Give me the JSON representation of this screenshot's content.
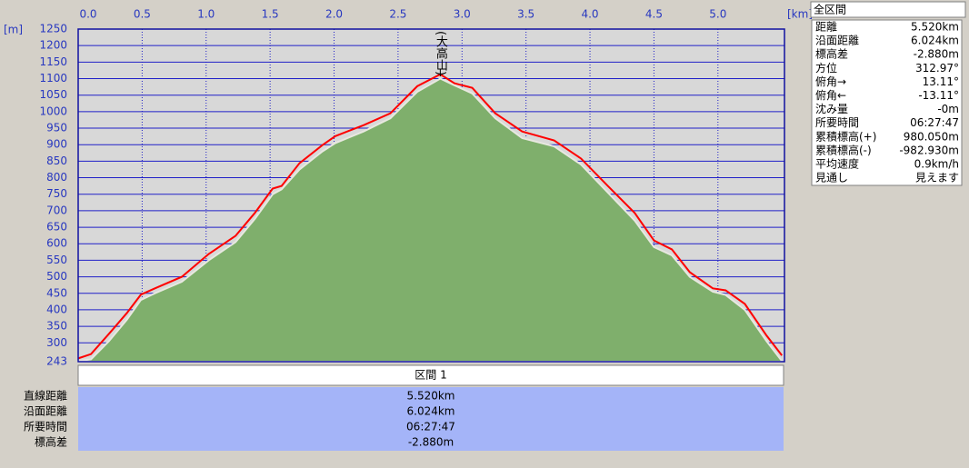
{
  "chart_data": {
    "type": "area",
    "x_unit": "[km]",
    "y_unit": "[m]",
    "annotation": {
      "text": "(大高山)",
      "x": 2.83
    },
    "x": [
      0,
      0.1,
      0.24,
      0.38,
      0.49,
      0.6,
      0.81,
      1.02,
      1.23,
      1.38,
      1.52,
      1.59,
      1.73,
      1.91,
      2.01,
      2.23,
      2.44,
      2.65,
      2.83,
      2.94,
      3.08,
      3.26,
      3.47,
      3.72,
      3.93,
      4.14,
      4.35,
      4.5,
      4.64,
      4.78,
      4.96,
      5.06,
      5.21,
      5.38,
      5.5
    ],
    "series": [
      {
        "style": "area",
        "color": "#7faf6c",
        "values": [
          245,
          250,
          305,
          370,
          430,
          450,
          485,
          550,
          605,
          675,
          750,
          765,
          825,
          880,
          905,
          940,
          980,
          1060,
          1100,
          1080,
          1055,
          980,
          920,
          895,
          840,
          755,
          670,
          590,
          565,
          500,
          455,
          445,
          400,
          305,
          245
        ]
      },
      {
        "style": "line",
        "color": "#ff0000",
        "values": [
          253,
          266,
          327,
          390,
          446,
          465,
          500,
          569,
          624,
          693,
          767,
          775,
          844,
          899,
          926,
          959,
          995,
          1077,
          1113,
          1086,
          1072,
          995,
          940,
          913,
          858,
          775,
          693,
          610,
          583,
          514,
          465,
          459,
          418,
          322,
          262
        ]
      }
    ],
    "xlim": [
      0,
      5.52
    ],
    "ylim": [
      243,
      1250
    ],
    "xticks": [
      {
        "value": 0,
        "label": "0.0"
      },
      0.5,
      {
        "value": 1,
        "label": "1.0"
      },
      1.5,
      {
        "value": 2,
        "label": "2.0"
      },
      2.5,
      {
        "value": 3,
        "label": "3.0"
      },
      3.5,
      {
        "value": 4,
        "label": "4.0"
      },
      4.5,
      {
        "value": 5,
        "label": "5.0"
      }
    ],
    "yticks": [
      243,
      300,
      350,
      400,
      450,
      500,
      550,
      600,
      650,
      700,
      750,
      800,
      850,
      900,
      950,
      1000,
      1050,
      1100,
      1150,
      1200,
      1250
    ],
    "grid": true
  },
  "section_table": {
    "header": "区間 1",
    "rows": [
      [
        "直線距離",
        "5.520km"
      ],
      [
        "沿面距離",
        "6.024km"
      ],
      [
        "所要時間",
        "06:27:47"
      ],
      [
        "標高差",
        "-2.880m"
      ]
    ]
  },
  "summary": {
    "title": "全区間",
    "rows": [
      [
        "距離",
        "5.520km"
      ],
      [
        "沿面距離",
        "6.024km"
      ],
      [
        "標高差",
        "-2.880m"
      ],
      [
        "方位",
        "312.97°"
      ],
      [
        "俯角→",
        "13.11°"
      ],
      [
        "俯角←",
        "-13.11°"
      ],
      [
        "沈み量",
        "-0m"
      ],
      [
        "所要時間",
        "06:27:47"
      ],
      [
        "累積標高(+)",
        "980.050m"
      ],
      [
        "累積標高(-)",
        "-982.930m"
      ],
      [
        "平均速度",
        "0.9km/h"
      ],
      [
        "見通し",
        "見えます"
      ]
    ]
  }
}
